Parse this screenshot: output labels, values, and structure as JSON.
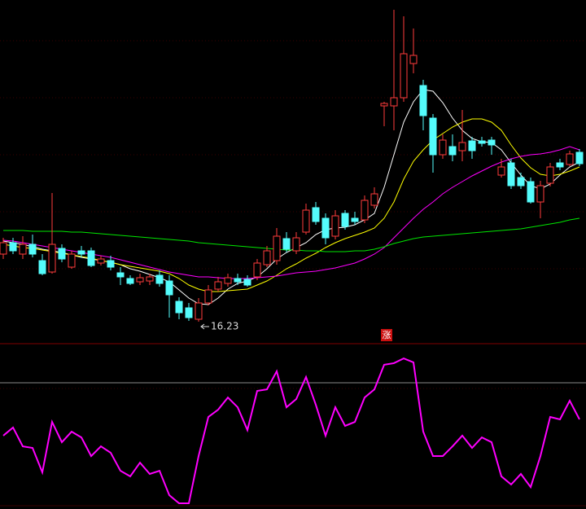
{
  "chart_data": [
    {
      "type": "candlestick",
      "up_color": "#ff3c3c",
      "down_color": "#54fcfc",
      "open": [
        19.55,
        20.11,
        19.55,
        20.03,
        19.23,
        18.67,
        19.83,
        18.91,
        19.71,
        19.71,
        19.11,
        19.23,
        18.63,
        18.35,
        18.19,
        18.23,
        18.51,
        18.23,
        17.23,
        16.91,
        16.35,
        17.15,
        17.83,
        18.11,
        18.35,
        18.31,
        18.43,
        19.03,
        19.23,
        20.31,
        19.71,
        20.63,
        21.83,
        21.31,
        20.43,
        21.55,
        21.31,
        21.23,
        21.95,
        26.83,
        26.83,
        27.23,
        28.91,
        27.83,
        26.23,
        24.43,
        24.83,
        24.63,
        25.11,
        25.11,
        25.15,
        23.43,
        24.03,
        23.31,
        23.11,
        22.11,
        23.03,
        24.03,
        23.95,
        24.55
      ],
      "high": [
        20.35,
        20.35,
        20.43,
        20.51,
        19.55,
        22.55,
        20.03,
        19.71,
        19.95,
        19.87,
        19.47,
        19.47,
        18.91,
        18.51,
        18.59,
        18.59,
        18.75,
        18.51,
        17.43,
        17.15,
        17.39,
        18.03,
        18.43,
        18.59,
        18.59,
        18.51,
        19.31,
        19.95,
        20.83,
        20.63,
        20.63,
        22.03,
        22.11,
        21.55,
        21.71,
        21.71,
        21.63,
        22.43,
        22.83,
        27.03,
        31.55,
        31.23,
        30.63,
        28.11,
        26.43,
        25.43,
        25.43,
        26.63,
        25.31,
        25.31,
        25.31,
        24.23,
        24.23,
        23.55,
        23.31,
        23.15,
        24.03,
        24.23,
        24.63,
        24.71
      ],
      "low": [
        19.31,
        19.55,
        19.31,
        19.39,
        18.51,
        18.59,
        19.15,
        18.83,
        19.39,
        18.91,
        18.99,
        18.75,
        18.03,
        18.03,
        18.03,
        18.03,
        17.95,
        16.43,
        16.35,
        16.27,
        16.23,
        17.03,
        17.71,
        17.95,
        18.03,
        17.95,
        18.27,
        18.91,
        19.03,
        19.63,
        19.55,
        20.51,
        20.99,
        20.03,
        20.27,
        20.75,
        20.99,
        21.07,
        21.79,
        25.83,
        25.63,
        27.03,
        28.43,
        25.63,
        23.55,
        24.23,
        24.11,
        24.11,
        24.23,
        24.83,
        24.43,
        23.31,
        22.75,
        22.75,
        22.03,
        21.31,
        22.87,
        23.67,
        23.87,
        23.87
      ],
      "close": [
        20.11,
        19.71,
        20.03,
        19.55,
        18.59,
        20.03,
        19.31,
        19.55,
        19.55,
        18.99,
        19.31,
        18.91,
        18.43,
        18.11,
        18.39,
        18.43,
        18.11,
        17.55,
        16.67,
        16.43,
        17.15,
        17.79,
        18.19,
        18.39,
        18.19,
        18.03,
        19.11,
        19.71,
        20.43,
        19.79,
        20.35,
        21.71,
        21.15,
        20.35,
        21.43,
        20.91,
        21.15,
        22.19,
        22.51,
        26.95,
        27.23,
        29.39,
        29.31,
        26.35,
        24.43,
        25.15,
        24.43,
        25.03,
        24.63,
        24.99,
        24.91,
        23.83,
        22.91,
        22.91,
        22.11,
        22.91,
        23.83,
        23.83,
        24.47,
        23.99
      ],
      "series": [
        {
          "color": "#ffffff",
          "values": [
            20.19,
            20.11,
            20.03,
            19.91,
            19.79,
            19.71,
            19.63,
            19.51,
            19.39,
            19.31,
            19.23,
            19.15,
            19.03,
            18.83,
            18.71,
            18.55,
            18.39,
            18.19,
            17.79,
            17.39,
            17.11,
            17.07,
            17.39,
            17.83,
            18.11,
            18.23,
            18.43,
            18.83,
            19.31,
            19.63,
            19.87,
            20.11,
            20.51,
            20.75,
            20.83,
            20.87,
            20.99,
            21.23,
            21.55,
            22.83,
            24.43,
            26.03,
            27.03,
            27.63,
            27.55,
            26.99,
            26.23,
            25.63,
            25.23,
            25.07,
            25.03,
            24.67,
            24.03,
            23.43,
            22.91,
            22.75,
            22.99,
            23.43,
            23.83,
            24.07
          ]
        },
        {
          "color": "#ffff00",
          "values": [
            20.03,
            19.95,
            19.87,
            19.83,
            19.75,
            19.67,
            19.59,
            19.51,
            19.43,
            19.35,
            19.23,
            19.15,
            19.03,
            18.95,
            18.87,
            18.79,
            18.71,
            18.59,
            18.35,
            18.03,
            17.83,
            17.71,
            17.71,
            17.75,
            17.79,
            17.83,
            18.03,
            18.23,
            18.51,
            18.83,
            19.07,
            19.35,
            19.59,
            19.87,
            20.11,
            20.31,
            20.47,
            20.63,
            20.83,
            21.31,
            22.11,
            23.23,
            24.11,
            24.67,
            25.15,
            25.47,
            25.79,
            26.03,
            26.19,
            26.19,
            26.03,
            25.63,
            24.91,
            24.27,
            23.79,
            23.47,
            23.39,
            23.47,
            23.63,
            23.83
          ]
        },
        {
          "color": "#ff00ff",
          "values": [
            20.23,
            20.19,
            20.11,
            20.03,
            19.95,
            19.87,
            19.79,
            19.71,
            19.63,
            19.55,
            19.47,
            19.39,
            19.27,
            19.15,
            19.03,
            18.91,
            18.79,
            18.67,
            18.59,
            18.51,
            18.43,
            18.43,
            18.39,
            18.35,
            18.35,
            18.35,
            18.39,
            18.43,
            18.47,
            18.55,
            18.63,
            18.67,
            18.71,
            18.79,
            18.87,
            18.99,
            19.11,
            19.31,
            19.55,
            19.87,
            20.35,
            20.83,
            21.31,
            21.75,
            22.11,
            22.51,
            22.83,
            23.11,
            23.39,
            23.63,
            23.87,
            24.07,
            24.23,
            24.35,
            24.43,
            24.47,
            24.55,
            24.67,
            24.83,
            24.67
          ]
        },
        {
          "color": "#00e600",
          "values": [
            20.71,
            20.71,
            20.71,
            20.67,
            20.67,
            20.67,
            20.67,
            20.63,
            20.63,
            20.59,
            20.55,
            20.51,
            20.47,
            20.43,
            20.39,
            20.35,
            20.31,
            20.27,
            20.23,
            20.19,
            20.11,
            20.07,
            20.03,
            19.99,
            19.95,
            19.91,
            19.87,
            19.83,
            19.79,
            19.75,
            19.75,
            19.71,
            19.71,
            19.67,
            19.67,
            19.67,
            19.71,
            19.71,
            19.79,
            19.91,
            20.07,
            20.19,
            20.31,
            20.39,
            20.43,
            20.47,
            20.51,
            20.55,
            20.59,
            20.63,
            20.67,
            20.71,
            20.75,
            20.79,
            20.87,
            20.95,
            21.03,
            21.11,
            21.23,
            21.31
          ]
        }
      ],
      "badge": "涨"
    },
    {
      "type": "line",
      "ylim": [
        0,
        100
      ],
      "series": [
        {
          "color": "#ff00ff",
          "values": [
            43.4,
            48.5,
            36.7,
            35.7,
            20.4,
            52.0,
            39.3,
            45.9,
            42.3,
            30.6,
            36.7,
            32.7,
            21.4,
            17.9,
            26.5,
            19.4,
            21.4,
            6.1,
            1.0,
            1.0,
            30.6,
            55.1,
            59.7,
            67.3,
            61.2,
            46.9,
            71.4,
            72.4,
            83.7,
            61.2,
            66.3,
            80.1,
            62.8,
            43.4,
            61.2,
            49.5,
            52.0,
            67.3,
            72.4,
            87.8,
            88.8,
            91.8,
            89.3,
            45.9,
            30.6,
            30.6,
            36.7,
            43.4,
            35.7,
            42.3,
            39.3,
            17.9,
            12.8,
            19.4,
            11.2,
            30.6,
            55.1,
            53.6,
            65.3,
            53.6
          ]
        }
      ]
    }
  ]
}
